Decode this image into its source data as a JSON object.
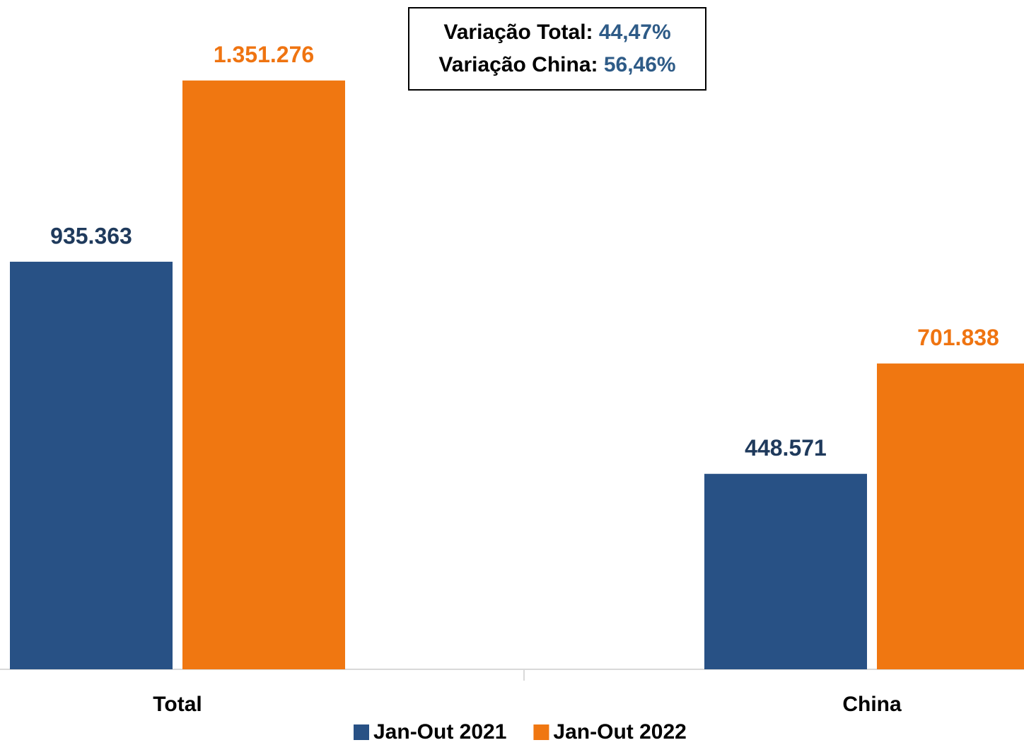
{
  "chart_data": {
    "type": "bar",
    "categories": [
      "Total",
      "China"
    ],
    "series": [
      {
        "name": "Jan-Out 2021",
        "color": "#285185",
        "label_color": "#1f3a5c",
        "values": [
          935363,
          448571
        ],
        "value_labels": [
          "935.363",
          "448.571"
        ]
      },
      {
        "name": "Jan-Out 2022",
        "color": "#f07711",
        "label_color": "#ef7411",
        "values": [
          1351276,
          701838
        ],
        "value_labels": [
          "1.351.276",
          "701.838"
        ]
      }
    ],
    "ylim": [
      0,
      1536000
    ],
    "annotations": [
      {
        "label": "Variação Total:",
        "value": "44,47%"
      },
      {
        "label": "Variação China:",
        "value": "56,46%"
      }
    ]
  }
}
